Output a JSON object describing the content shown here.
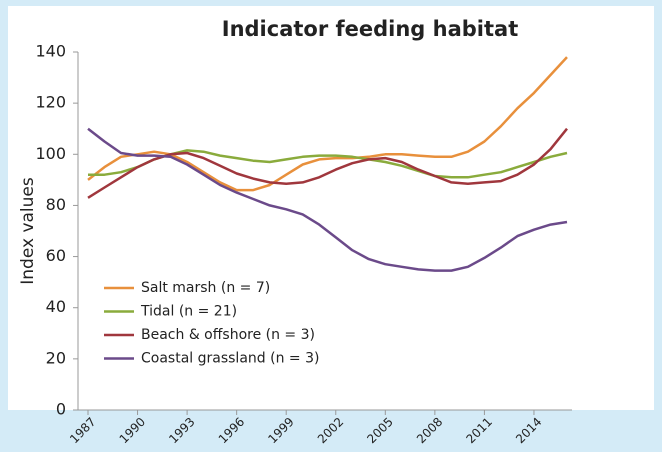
{
  "chart_data": {
    "type": "line",
    "title": "Indicator feeding habitat",
    "y_label": "Index values",
    "categories": [
      "1987",
      null,
      null,
      "1990",
      null,
      null,
      "1993",
      null,
      null,
      "1996",
      null,
      null,
      "1999",
      null,
      null,
      "2002",
      null,
      null,
      "2005",
      null,
      null,
      "2008",
      null,
      null,
      "2011",
      null,
      null,
      "2014",
      null,
      null
    ],
    "ylim": [
      0,
      140
    ],
    "yticks": [
      0,
      20,
      40,
      60,
      80,
      100,
      120,
      140
    ],
    "grid": false,
    "legend": "lower left",
    "series": [
      {
        "name": "Salt marsh (n = 7)",
        "color": "#e8903c",
        "values": [
          90,
          95,
          99,
          100,
          101,
          100,
          97,
          93,
          89,
          86,
          86,
          88,
          92,
          96,
          98,
          98.5,
          98.5,
          99,
          100,
          100,
          99.5,
          99,
          99,
          101,
          105,
          111,
          118,
          124,
          131,
          138
        ]
      },
      {
        "name": "Tidal (n = 21)",
        "color": "#8aab3c",
        "values": [
          92,
          92,
          93,
          95,
          98,
          100,
          101.5,
          101,
          99.5,
          98.5,
          97.5,
          97,
          98,
          99,
          99.5,
          99.5,
          99,
          98,
          97,
          95.5,
          93.5,
          91.5,
          91,
          91,
          92,
          93,
          95,
          97,
          99,
          100.5
        ]
      },
      {
        "name": "Beach & offshore (n = 3)",
        "color": "#a0373d",
        "values": [
          83,
          87,
          91,
          95,
          98,
          100,
          100.5,
          98.5,
          95.5,
          92.5,
          90.5,
          89,
          88.5,
          89,
          91,
          94,
          96.5,
          98,
          98.5,
          97,
          94,
          91.5,
          89,
          88.5,
          89,
          89.5,
          92,
          96,
          102,
          110
        ]
      },
      {
        "name": "Coastal grassland (n = 3)",
        "color": "#6b4a8a",
        "values": [
          110,
          105,
          100.5,
          99.5,
          99.5,
          99,
          96,
          92,
          88,
          85,
          82.5,
          80,
          78.5,
          76.5,
          72.5,
          67.5,
          62.5,
          59,
          57,
          56,
          55,
          54.5,
          54.5,
          56,
          59.5,
          63.5,
          68,
          70.5,
          72.5,
          73.5
        ]
      }
    ]
  }
}
